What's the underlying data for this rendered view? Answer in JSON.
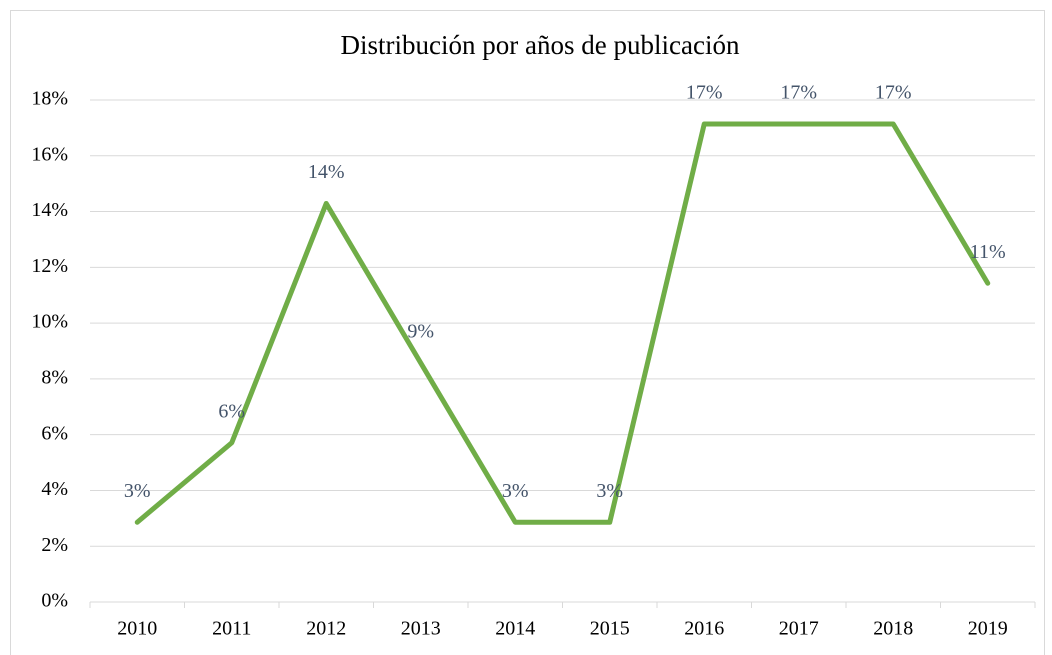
{
  "chart_data": {
    "type": "line",
    "title": "Distribución por años de publicación",
    "categories": [
      "2010",
      "2011",
      "2012",
      "2013",
      "2014",
      "2015",
      "2016",
      "2017",
      "2018",
      "2019"
    ],
    "series": [
      {
        "name": "Distribución",
        "color": "#70ad47",
        "values": [
          2.86,
          5.71,
          14.29,
          8.57,
          2.86,
          2.86,
          17.14,
          17.14,
          17.14,
          11.43
        ],
        "value_labels": [
          "3%",
          "6%",
          "14%",
          "9%",
          "3%",
          "3%",
          "17%",
          "17%",
          "17%",
          "11%"
        ]
      }
    ],
    "ylim": [
      0,
      18
    ],
    "yticks": [
      {
        "value": 0,
        "label": "0%"
      },
      {
        "value": 2,
        "label": "2%"
      },
      {
        "value": 4,
        "label": "4%"
      },
      {
        "value": 6,
        "label": "6%"
      },
      {
        "value": 8,
        "label": "8%"
      },
      {
        "value": 10,
        "label": "10%"
      },
      {
        "value": 12,
        "label": "12%"
      },
      {
        "value": 14,
        "label": "14%"
      },
      {
        "value": 16,
        "label": "16%"
      },
      {
        "value": 18,
        "label": "18%"
      }
    ],
    "grid": true
  }
}
